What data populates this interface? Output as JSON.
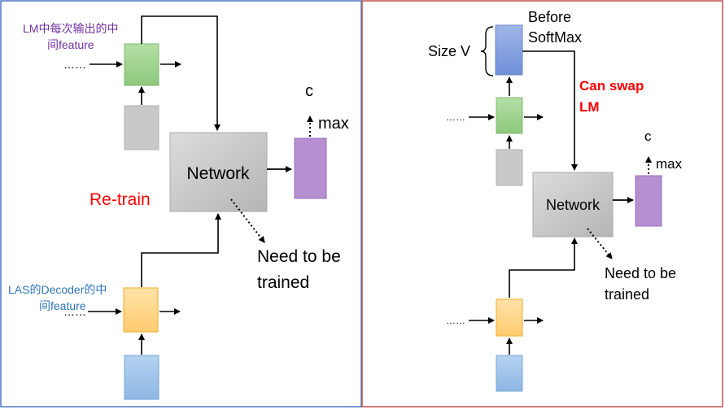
{
  "left_panel": {
    "lm_caption_line1": "LM中每次输出的中",
    "lm_caption_line2": "间feature",
    "las_caption_line1": "LAS的Decoder的中",
    "las_caption_line2": "间feature",
    "network_label": "Network",
    "retrain_label": "Re-train",
    "output_symbol": "c",
    "max_label": "max",
    "need_train_line1": "Need to be",
    "need_train_line2": "trained",
    "left_dots_top": "……",
    "left_dots_bottom": "……",
    "border_color": "#4a76c4"
  },
  "right_panel": {
    "before_line1": "Before",
    "before_line2": "SoftMax",
    "size_label": "Size V",
    "swap_line1": "Can swap",
    "swap_line2": "LM",
    "network_label": "Network",
    "output_symbol": "c",
    "max_label": "max",
    "need_train_line1": "Need to be",
    "need_train_line2": "trained",
    "left_dots_top": "……",
    "left_dots_bottom": "……",
    "border_color": "#c0504d"
  },
  "colors": {
    "green_box": "#9ed48f",
    "gray_box": "#c9c9c9",
    "orange_box": "#ffd38a",
    "blue_box": "#9fc3ea",
    "purple_box": "#b58fd0",
    "network_box": "#c4c4c4",
    "lm_caption": "#7030a0",
    "las_caption": "#2e75b6",
    "retrain": "#ff0000",
    "swap": "#ff0000"
  }
}
